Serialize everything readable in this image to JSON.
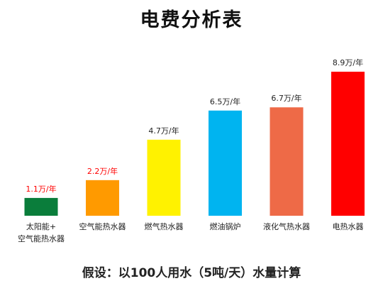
{
  "title": "电费分析表",
  "footnote": "假设：以100人用水（5吨/天）水量计算",
  "chart_data": {
    "type": "bar",
    "categories": [
      "太阳能+\n空气能热水器",
      "空气能热水器",
      "燃气热水器",
      "燃油锅炉",
      "液化气热水器",
      "电热水器"
    ],
    "values": [
      1.1,
      2.2,
      4.7,
      6.5,
      6.7,
      8.9
    ],
    "value_labels": [
      "1.1万/年",
      "2.2万/年",
      "4.7万/年",
      "6.5万/年",
      "6.7万/年",
      "8.9万/年"
    ],
    "colors": [
      "#0a7d3b",
      "#ff9a00",
      "#fff200",
      "#00b4f0",
      "#ee6a47",
      "#ff0000"
    ],
    "label_colors": [
      "#ff0000",
      "#ff0000",
      "#222222",
      "#222222",
      "#222222",
      "#222222"
    ],
    "ylim": [
      0,
      10
    ],
    "grid": false,
    "legend": "none"
  }
}
